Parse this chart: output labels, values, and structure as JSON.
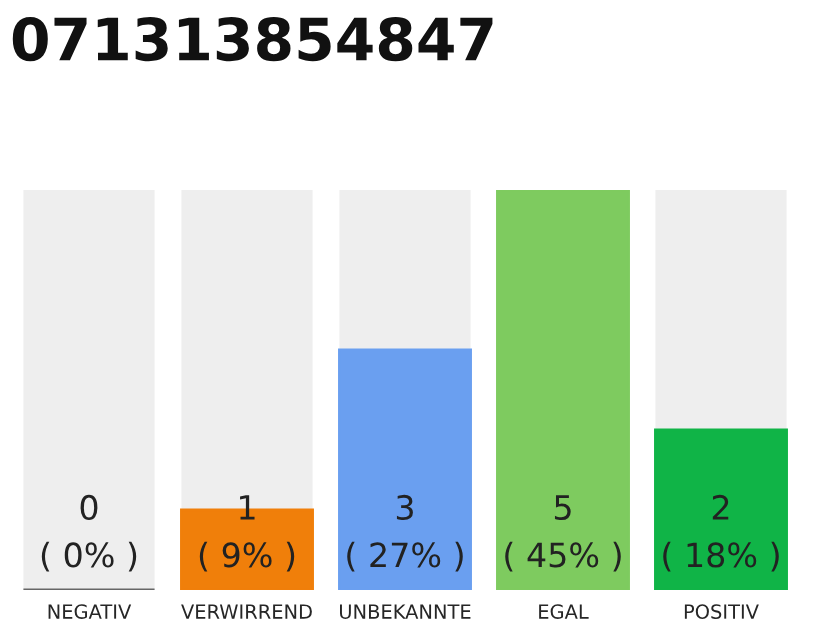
{
  "chart_data": {
    "type": "bar",
    "title": "071313854847",
    "categories": [
      "NEGATIV",
      "VERWIRREND",
      "UNBEKANNTE",
      "EGAL",
      "POSITIV"
    ],
    "values": [
      0,
      1,
      3,
      5,
      2
    ],
    "colors": [
      "#666666",
      "#f07f0a",
      "#6a9ff0",
      "#7ecb5f",
      "#10b447"
    ],
    "value_labels": [
      "0\n( 0% )",
      "1\n( 9% )",
      "3\n( 27% )",
      "5\n( 45% )",
      "2\n( 18% )"
    ],
    "grid": false,
    "legend": false
  }
}
